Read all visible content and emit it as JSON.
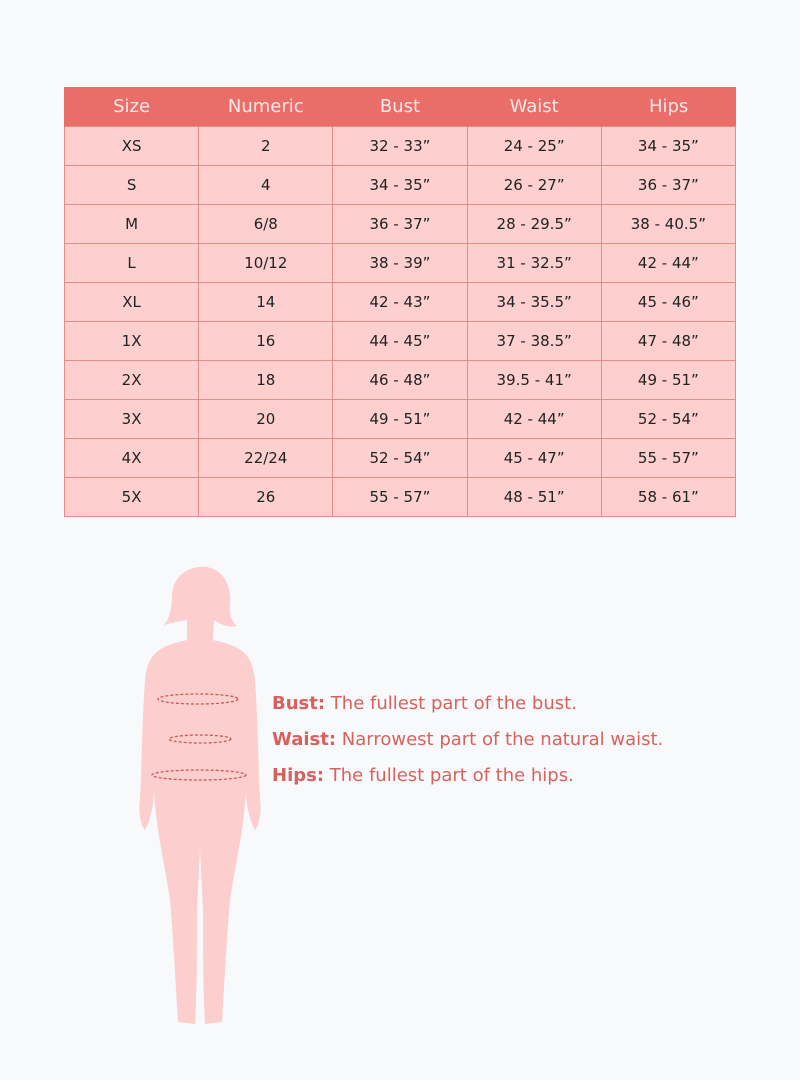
{
  "table": {
    "headers": [
      "Size",
      "Numeric",
      "Bust",
      "Waist",
      "Hips"
    ],
    "rows": [
      [
        "XS",
        "2",
        "32  -  33”",
        "24 - 25”",
        "34 - 35”"
      ],
      [
        "S",
        "4",
        "34 - 35”",
        "26 - 27”",
        "36 - 37”"
      ],
      [
        "M",
        "6/8",
        "36 - 37”",
        "28 - 29.5”",
        "38 - 40.5”"
      ],
      [
        "L",
        "10/12",
        "38 - 39”",
        "31 - 32.5”",
        "42 - 44”"
      ],
      [
        "XL",
        "14",
        "42 - 43”",
        "34 - 35.5”",
        "45 - 46”"
      ],
      [
        "1X",
        "16",
        "44 - 45”",
        "37 - 38.5”",
        "47 - 48”"
      ],
      [
        "2X",
        "18",
        "46 - 48”",
        "39.5 - 41”",
        "49 - 51”"
      ],
      [
        "3X",
        "20",
        "49 - 51”",
        "42 - 44”",
        "52 - 54”"
      ],
      [
        "4X",
        "22/24",
        "52 - 54”",
        "45 - 47”",
        "55 - 57”"
      ],
      [
        "5X",
        "26",
        "55 - 57”",
        "48 - 51”",
        "58 - 61”"
      ]
    ]
  },
  "legend": [
    {
      "term": "Bust:",
      "desc": " The fullest part of the bust."
    },
    {
      "term": "Waist:",
      "desc": " Narrowest part of the natural waist."
    },
    {
      "term": "Hips:",
      "desc": " The fullest part of the hips."
    }
  ],
  "colors": {
    "header": "#e96e69",
    "cell": "#fdd0cf",
    "accent": "#d9615d",
    "silhouette": "#fccfce"
  }
}
